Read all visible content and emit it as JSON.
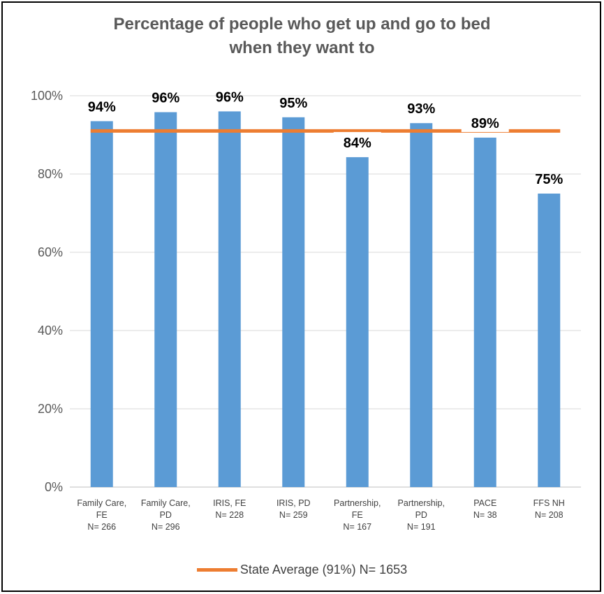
{
  "chart_data": {
    "type": "bar",
    "title": [
      "Percentage of people who get up and go to bed",
      "when they want to"
    ],
    "categories": [
      [
        "Family Care,",
        "FE",
        "N= 266"
      ],
      [
        "Family Care,",
        "PD",
        "N= 296"
      ],
      [
        "IRIS, FE",
        "N= 228"
      ],
      [
        "IRIS, PD",
        "N= 259"
      ],
      [
        "Partnership,",
        "FE",
        "N= 167"
      ],
      [
        "Partnership,",
        "PD",
        "N= 191"
      ],
      [
        "PACE",
        "N= 38"
      ],
      [
        "FFS NH",
        "N= 208"
      ]
    ],
    "values": [
      93.5,
      95.8,
      96.0,
      94.5,
      84.3,
      93.0,
      89.3,
      75.0
    ],
    "data_labels": [
      "94%",
      "96%",
      "96%",
      "95%",
      "84%",
      "93%",
      "89%",
      "75%"
    ],
    "ylim": [
      0,
      100
    ],
    "yticks": [
      0,
      20,
      40,
      60,
      80,
      100
    ],
    "ytick_labels": [
      "0%",
      "20%",
      "40%",
      "60%",
      "80%",
      "100%"
    ],
    "grid": true,
    "reference_line": {
      "value": 91,
      "label": "State Average (91%) N= 1653",
      "color": "#ED7D31"
    },
    "bar_color": "#5B9BD5",
    "legend_position": "bottom"
  }
}
